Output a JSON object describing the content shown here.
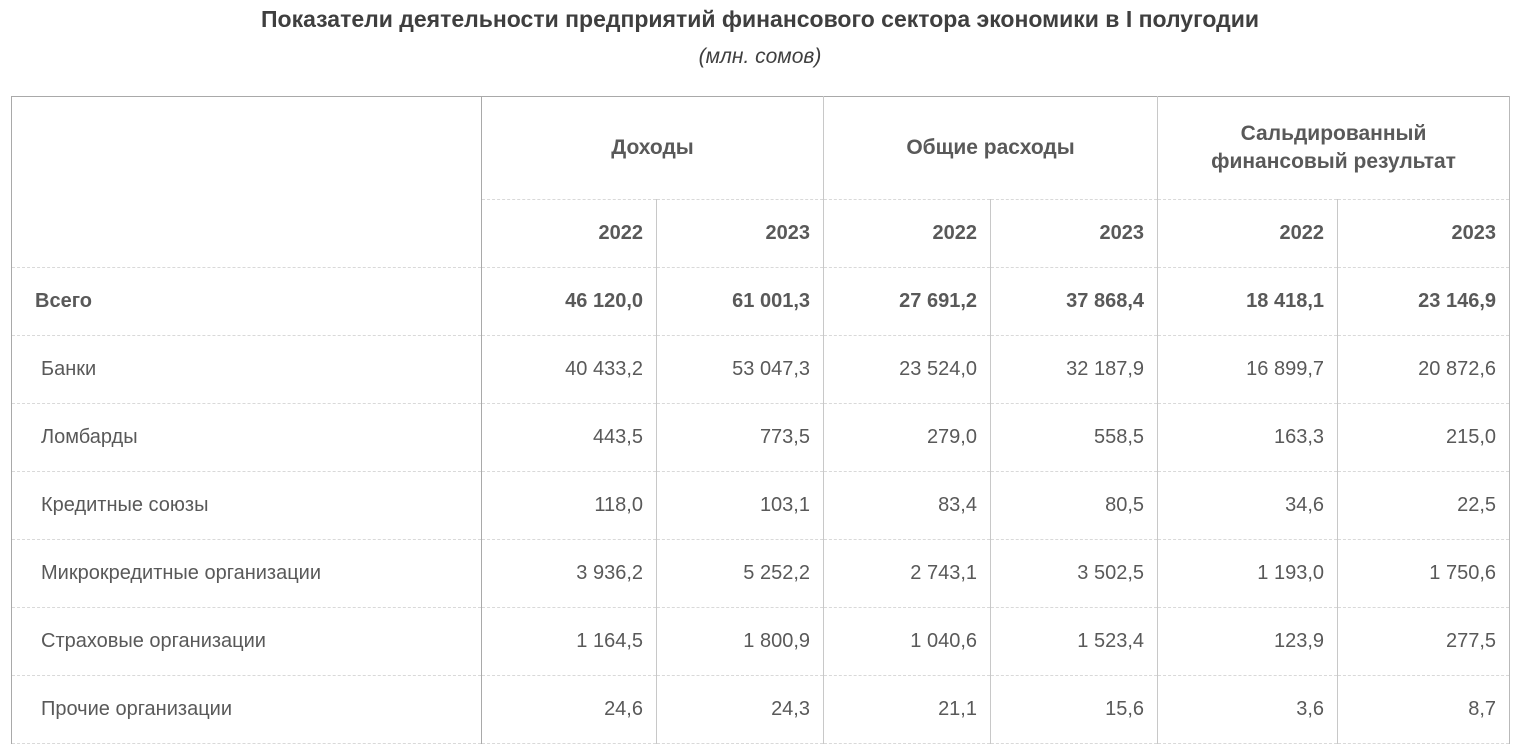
{
  "title": "Показатели деятельности предприятий финансового сектора экономики в I полугодии",
  "subtitle": "(млн. сомов)",
  "table": {
    "column_groups": [
      {
        "label": "Доходы",
        "years": [
          "2022",
          "2023"
        ]
      },
      {
        "label": "Общие расходы",
        "years": [
          "2022",
          "2023"
        ]
      },
      {
        "label": "Сальдированный финансовый результат",
        "years": [
          "2022",
          "2023"
        ]
      }
    ],
    "rows": [
      {
        "label": "Всего",
        "values": [
          "46 120,0",
          "61 001,3",
          "27 691,2",
          "37 868,4",
          "18 418,1",
          "23 146,9"
        ]
      },
      {
        "label": "Банки",
        "values": [
          "40 433,2",
          "53 047,3",
          "23 524,0",
          "32 187,9",
          "16 899,7",
          "20 872,6"
        ]
      },
      {
        "label": "Ломбарды",
        "values": [
          "443,5",
          "773,5",
          "279,0",
          "558,5",
          "163,3",
          "215,0"
        ]
      },
      {
        "label": "Кредитные союзы",
        "values": [
          "118,0",
          "103,1",
          "83,4",
          "80,5",
          "34,6",
          "22,5"
        ]
      },
      {
        "label": "Микрокредитные организации",
        "values": [
          "3 936,2",
          "5 252,2",
          "2 743,1",
          "3 502,5",
          "1 193,0",
          "1 750,6"
        ]
      },
      {
        "label": "Страховые организации",
        "values": [
          "1 164,5",
          "1 800,9",
          "1 040,6",
          "1 523,4",
          "123,9",
          "277,5"
        ]
      },
      {
        "label": "Прочие организации",
        "values": [
          "24,6",
          "24,3",
          "21,1",
          "15,6",
          "3,6",
          "8,7"
        ]
      }
    ]
  },
  "chart_data": {
    "type": "table",
    "title": "Показатели деятельности предприятий финансового сектора экономики в I полугодии",
    "subtitle": "(млн. сомов)",
    "units": "млн. сомов",
    "column_groups": [
      "Доходы",
      "Общие расходы",
      "Сальдированный финансовый результат"
    ],
    "columns": [
      "Доходы 2022",
      "Доходы 2023",
      "Общие расходы 2022",
      "Общие расходы 2023",
      "Сальдированный финансовый результат 2022",
      "Сальдированный финансовый результат 2023"
    ],
    "row_labels": [
      "Всего",
      "Банки",
      "Ломбарды",
      "Кредитные союзы",
      "Микрокредитные организации",
      "Страховые организации",
      "Прочие организации"
    ],
    "values": [
      [
        46120.0,
        61001.3,
        27691.2,
        37868.4,
        18418.1,
        23146.9
      ],
      [
        40433.2,
        53047.3,
        23524.0,
        32187.9,
        16899.7,
        20872.6
      ],
      [
        443.5,
        773.5,
        279.0,
        558.5,
        163.3,
        215.0
      ],
      [
        118.0,
        103.1,
        83.4,
        80.5,
        34.6,
        22.5
      ],
      [
        3936.2,
        5252.2,
        2743.1,
        3502.5,
        1193.0,
        1750.6
      ],
      [
        1164.5,
        1800.9,
        1040.6,
        1523.4,
        123.9,
        277.5
      ],
      [
        24.6,
        24.3,
        21.1,
        15.6,
        3.6,
        8.7
      ]
    ],
    "colors": {
      "text": "#595959",
      "title_text": "#3f3f3f",
      "solid_border": "#a9a9a9",
      "light_border": "#c8c8c8",
      "dashed_border": "#d9d9d9",
      "background": "#ffffff"
    }
  }
}
